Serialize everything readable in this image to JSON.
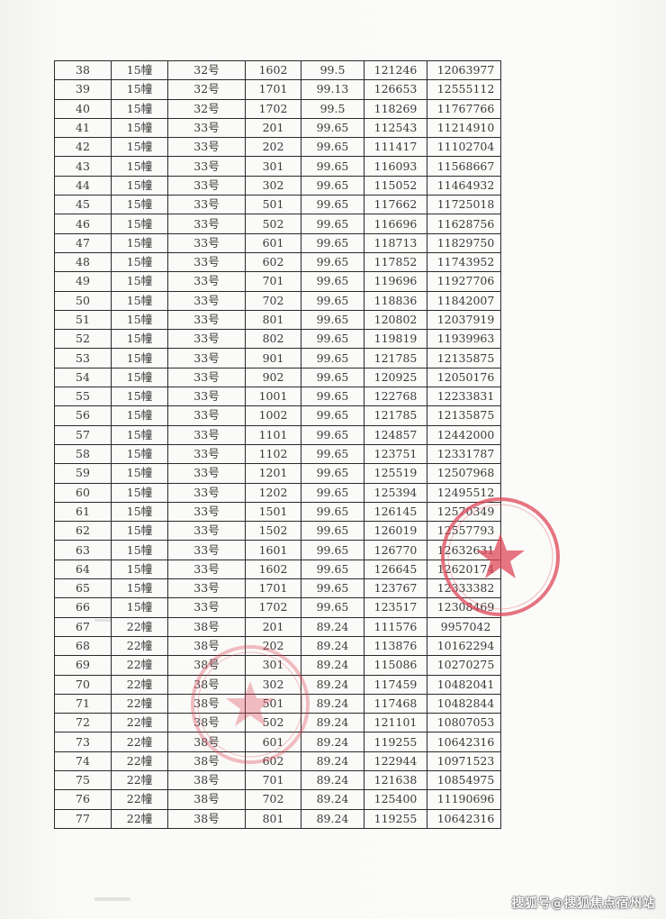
{
  "table": {
    "rows": [
      [
        "38",
        "15幢",
        "32号",
        "1602",
        "99.5",
        "121246",
        "12063977"
      ],
      [
        "39",
        "15幢",
        "32号",
        "1701",
        "99.13",
        "126653",
        "12555112"
      ],
      [
        "40",
        "15幢",
        "32号",
        "1702",
        "99.5",
        "118269",
        "11767766"
      ],
      [
        "41",
        "15幢",
        "33号",
        "201",
        "99.65",
        "112543",
        "11214910"
      ],
      [
        "42",
        "15幢",
        "33号",
        "202",
        "99.65",
        "111417",
        "11102704"
      ],
      [
        "43",
        "15幢",
        "33号",
        "301",
        "99.65",
        "116093",
        "11568667"
      ],
      [
        "44",
        "15幢",
        "33号",
        "302",
        "99.65",
        "115052",
        "11464932"
      ],
      [
        "45",
        "15幢",
        "33号",
        "501",
        "99.65",
        "117662",
        "11725018"
      ],
      [
        "46",
        "15幢",
        "33号",
        "502",
        "99.65",
        "116696",
        "11628756"
      ],
      [
        "47",
        "15幢",
        "33号",
        "601",
        "99.65",
        "118713",
        "11829750"
      ],
      [
        "48",
        "15幢",
        "33号",
        "602",
        "99.65",
        "117852",
        "11743952"
      ],
      [
        "49",
        "15幢",
        "33号",
        "701",
        "99.65",
        "119696",
        "11927706"
      ],
      [
        "50",
        "15幢",
        "33号",
        "702",
        "99.65",
        "118836",
        "11842007"
      ],
      [
        "51",
        "15幢",
        "33号",
        "801",
        "99.65",
        "120802",
        "12037919"
      ],
      [
        "52",
        "15幢",
        "33号",
        "802",
        "99.65",
        "119819",
        "11939963"
      ],
      [
        "53",
        "15幢",
        "33号",
        "901",
        "99.65",
        "121785",
        "12135875"
      ],
      [
        "54",
        "15幢",
        "33号",
        "902",
        "99.65",
        "120925",
        "12050176"
      ],
      [
        "55",
        "15幢",
        "33号",
        "1001",
        "99.65",
        "122768",
        "12233831"
      ],
      [
        "56",
        "15幢",
        "33号",
        "1002",
        "99.65",
        "121785",
        "12135875"
      ],
      [
        "57",
        "15幢",
        "33号",
        "1101",
        "99.65",
        "124857",
        "12442000"
      ],
      [
        "58",
        "15幢",
        "33号",
        "1102",
        "99.65",
        "123751",
        "12331787"
      ],
      [
        "59",
        "15幢",
        "33号",
        "1201",
        "99.65",
        "125519",
        "12507968"
      ],
      [
        "60",
        "15幢",
        "33号",
        "1202",
        "99.65",
        "125394",
        "12495512"
      ],
      [
        "61",
        "15幢",
        "33号",
        "1501",
        "99.65",
        "126145",
        "12570349"
      ],
      [
        "62",
        "15幢",
        "33号",
        "1502",
        "99.65",
        "126019",
        "12557793"
      ],
      [
        "63",
        "15幢",
        "33号",
        "1601",
        "99.65",
        "126770",
        "12632631"
      ],
      [
        "64",
        "15幢",
        "33号",
        "1602",
        "99.65",
        "126645",
        "12620174"
      ],
      [
        "65",
        "15幢",
        "33号",
        "1701",
        "99.65",
        "123767",
        "12333382"
      ],
      [
        "66",
        "15幢",
        "33号",
        "1702",
        "99.65",
        "123517",
        "12308469"
      ],
      [
        "67",
        "22幢",
        "38号",
        "201",
        "89.24",
        "111576",
        "9957042"
      ],
      [
        "68",
        "22幢",
        "38号",
        "202",
        "89.24",
        "113876",
        "10162294"
      ],
      [
        "69",
        "22幢",
        "38号",
        "301",
        "89.24",
        "115086",
        "10270275"
      ],
      [
        "70",
        "22幢",
        "38号",
        "302",
        "89.24",
        "117459",
        "10482041"
      ],
      [
        "71",
        "22幢",
        "38号",
        "501",
        "89.24",
        "117468",
        "10482844"
      ],
      [
        "72",
        "22幢",
        "38号",
        "502",
        "89.24",
        "121101",
        "10807053"
      ],
      [
        "73",
        "22幢",
        "38号",
        "601",
        "89.24",
        "119255",
        "10642316"
      ],
      [
        "74",
        "22幢",
        "38号",
        "602",
        "89.24",
        "122944",
        "10971523"
      ],
      [
        "75",
        "22幢",
        "38号",
        "701",
        "89.24",
        "121638",
        "10854975"
      ],
      [
        "76",
        "22幢",
        "38号",
        "702",
        "89.24",
        "125400",
        "11190696"
      ],
      [
        "77",
        "22幢",
        "38号",
        "801",
        "89.24",
        "119255",
        "10642316"
      ]
    ]
  },
  "stamp_color": "#e0485a",
  "watermark": "搜狐号@搜狐焦点宿州站"
}
